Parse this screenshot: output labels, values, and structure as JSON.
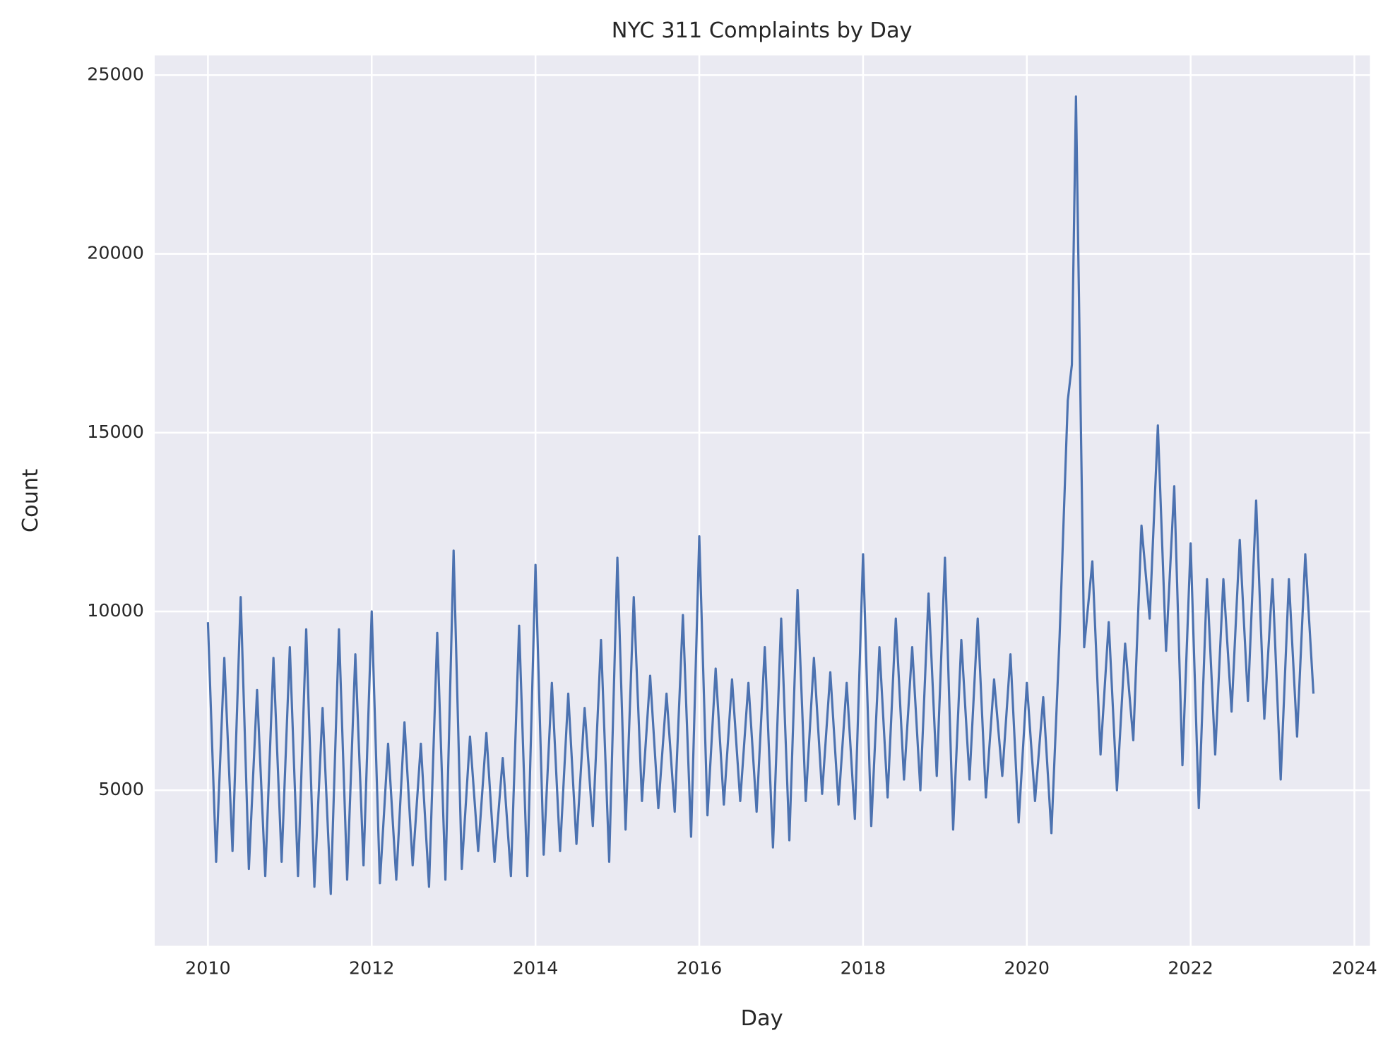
{
  "chart_data": {
    "type": "line",
    "title": "NYC 311 Complaints by Day",
    "x_label": "Day",
    "y_label": "Count",
    "grid": true,
    "xlim": [
      2009.35,
      2024.19
    ],
    "ylim": [
      650,
      25550
    ],
    "xticks": [
      2010,
      2012,
      2014,
      2016,
      2018,
      2020,
      2022,
      2024
    ],
    "yticks": [
      5000,
      10000,
      15000,
      20000,
      25000
    ],
    "x": [
      2010.0,
      2010.1,
      2010.2,
      2010.3,
      2010.4,
      2010.5,
      2010.6,
      2010.7,
      2010.8,
      2010.9,
      2011.0,
      2011.1,
      2011.2,
      2011.3,
      2011.4,
      2011.5,
      2011.6,
      2011.7,
      2011.8,
      2011.9,
      2012.0,
      2012.1,
      2012.2,
      2012.3,
      2012.4,
      2012.5,
      2012.6,
      2012.7,
      2012.8,
      2012.9,
      2013.0,
      2013.1,
      2013.2,
      2013.3,
      2013.4,
      2013.5,
      2013.6,
      2013.7,
      2013.8,
      2013.9,
      2014.0,
      2014.1,
      2014.2,
      2014.3,
      2014.4,
      2014.5,
      2014.6,
      2014.7,
      2014.8,
      2014.9,
      2015.0,
      2015.1,
      2015.2,
      2015.3,
      2015.4,
      2015.5,
      2015.6,
      2015.7,
      2015.8,
      2015.9,
      2016.0,
      2016.1,
      2016.2,
      2016.3,
      2016.4,
      2016.5,
      2016.6,
      2016.7,
      2016.8,
      2016.9,
      2017.0,
      2017.1,
      2017.2,
      2017.3,
      2017.4,
      2017.5,
      2017.6,
      2017.7,
      2017.8,
      2017.9,
      2018.0,
      2018.1,
      2018.2,
      2018.3,
      2018.4,
      2018.5,
      2018.6,
      2018.7,
      2018.8,
      2018.9,
      2019.0,
      2019.1,
      2019.2,
      2019.3,
      2019.4,
      2019.5,
      2019.6,
      2019.7,
      2019.8,
      2019.9,
      2020.0,
      2020.1,
      2020.2,
      2020.3,
      2020.4,
      2020.5,
      2020.55,
      2020.6,
      2020.7,
      2020.8,
      2020.9,
      2021.0,
      2021.1,
      2021.2,
      2021.3,
      2021.4,
      2021.5,
      2021.6,
      2021.7,
      2021.8,
      2021.9,
      2022.0,
      2022.1,
      2022.2,
      2022.3,
      2022.4,
      2022.5,
      2022.6,
      2022.7,
      2022.8,
      2022.9,
      2023.0,
      2023.1,
      2023.2,
      2023.3,
      2023.4,
      2023.5
    ],
    "series": [
      {
        "name": "Count",
        "color": "#4c72b0",
        "values": [
          9700,
          3000,
          8700,
          3300,
          10400,
          2800,
          7800,
          2600,
          8700,
          3000,
          9000,
          2600,
          9500,
          2300,
          7300,
          2100,
          9500,
          2500,
          8800,
          2900,
          10000,
          2400,
          6300,
          2500,
          6900,
          2900,
          6300,
          2300,
          9400,
          2500,
          11700,
          2800,
          6500,
          3300,
          6600,
          3000,
          5900,
          2600,
          9600,
          2600,
          11300,
          3200,
          8000,
          3300,
          7700,
          3500,
          7300,
          4000,
          9200,
          3000,
          11500,
          3900,
          10400,
          4700,
          8200,
          4500,
          7700,
          4400,
          9900,
          3700,
          12100,
          4300,
          8400,
          4600,
          8100,
          4700,
          8000,
          4400,
          9000,
          3400,
          9800,
          3600,
          10600,
          4700,
          8700,
          4900,
          8300,
          4600,
          8000,
          4200,
          11600,
          4000,
          9000,
          4800,
          9800,
          5300,
          9000,
          5000,
          10500,
          5400,
          11500,
          3900,
          9200,
          5300,
          9800,
          4800,
          8100,
          5400,
          8800,
          4100,
          8000,
          4700,
          7600,
          3800,
          9300,
          15900,
          16900,
          24400,
          9000,
          11400,
          6000,
          9700,
          5000,
          9100,
          6400,
          12400,
          9800,
          15200,
          8900,
          13500,
          5700,
          11900,
          4500,
          10900,
          6000,
          10900,
          7200,
          12000,
          7500,
          13100,
          7000,
          10900,
          5300,
          10900,
          6500,
          11600,
          7700
        ]
      }
    ]
  }
}
